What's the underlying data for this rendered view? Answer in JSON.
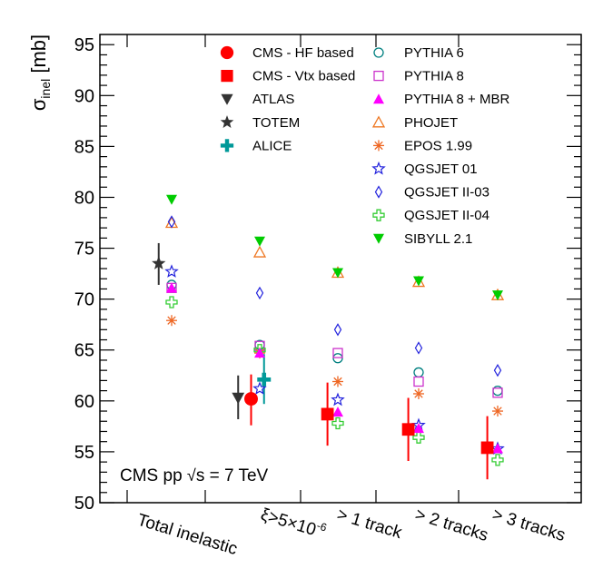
{
  "chart_data": {
    "type": "scatter",
    "ylabel": "σ",
    "ylabel_sub": "inel",
    "ylabel_unit": " [mb]",
    "ylim": [
      50,
      96
    ],
    "yticks": [
      "50",
      "55",
      "60",
      "65",
      "70",
      "75",
      "80",
      "85",
      "90",
      "95"
    ],
    "categories": [
      "Total inelastic",
      "ξ>5×10",
      "> 1 track",
      "> 2 tracks",
      "> 3 tracks"
    ],
    "category_sup": [
      "",
      "-6",
      "",
      "",
      ""
    ],
    "annotation": {
      "pre": "CMS pp ",
      "sqrt": "√",
      "post": "s = 7 TeV"
    },
    "series": [
      {
        "name": "CMS - HF based",
        "marker": "circle-filled",
        "color": "#ff0000",
        "points": [
          {
            "cat": 1,
            "off": -0.1,
            "y": 60.2,
            "lo": 57.6,
            "hi": 62.6
          }
        ]
      },
      {
        "name": "CMS - Vtx based",
        "marker": "square-filled",
        "color": "#ff0000",
        "points": [
          {
            "cat": 2,
            "off": -0.12,
            "y": 58.7,
            "lo": 55.6,
            "hi": 61.8
          },
          {
            "cat": 3,
            "off": -0.12,
            "y": 57.2,
            "lo": 54.1,
            "hi": 60.3
          },
          {
            "cat": 4,
            "off": -0.12,
            "y": 55.4,
            "lo": 52.3,
            "hi": 58.5
          }
        ]
      },
      {
        "name": "ATLAS",
        "marker": "tri-down-filled",
        "color": "#333333",
        "points": [
          {
            "cat": 1,
            "off": -0.25,
            "y": 60.3,
            "lo": 58.2,
            "hi": 62.5
          }
        ]
      },
      {
        "name": "TOTEM",
        "marker": "star-filled",
        "color": "#333333",
        "points": [
          {
            "cat": 0,
            "off": -0.15,
            "y": 73.5,
            "lo": 71.4,
            "hi": 75.5
          }
        ]
      },
      {
        "name": "ALICE",
        "marker": "plus-filled",
        "color": "#009999",
        "points": [
          {
            "cat": 1,
            "off": 0.05,
            "y": 62.1,
            "lo": 59.7,
            "hi": 64.6
          }
        ]
      },
      {
        "name": "PYTHIA 6",
        "marker": "circle-open",
        "color": "#008080",
        "points": [
          {
            "cat": 0,
            "y": 71.4
          },
          {
            "cat": 1,
            "y": 65.5
          },
          {
            "cat": 2,
            "y": 64.2
          },
          {
            "cat": 3,
            "y": 62.8
          },
          {
            "cat": 4,
            "y": 61.0
          }
        ]
      },
      {
        "name": "PYTHIA 8",
        "marker": "square-open",
        "color": "#cc33cc",
        "points": [
          {
            "cat": 0,
            "y": 71.1
          },
          {
            "cat": 1,
            "y": 65.4
          },
          {
            "cat": 2,
            "y": 64.7
          },
          {
            "cat": 3,
            "y": 61.9
          },
          {
            "cat": 4,
            "y": 60.8
          }
        ]
      },
      {
        "name": "PYTHIA 8 + MBR",
        "marker": "tri-up-filled",
        "color": "#ff00ff",
        "points": [
          {
            "cat": 0,
            "y": 71.1
          },
          {
            "cat": 1,
            "y": 64.7
          },
          {
            "cat": 2,
            "y": 58.9
          },
          {
            "cat": 3,
            "y": 57.3
          },
          {
            "cat": 4,
            "y": 55.3
          }
        ]
      },
      {
        "name": "PHOJET",
        "marker": "tri-up-open",
        "color": "#ee7722",
        "points": [
          {
            "cat": 0,
            "y": 77.5
          },
          {
            "cat": 1,
            "y": 74.6
          },
          {
            "cat": 2,
            "y": 72.6
          },
          {
            "cat": 3,
            "y": 71.7
          },
          {
            "cat": 4,
            "y": 70.4
          }
        ]
      },
      {
        "name": "EPOS 1.99",
        "marker": "asterisk",
        "color": "#ee6622",
        "points": [
          {
            "cat": 0,
            "y": 67.9
          },
          {
            "cat": 1,
            "y": 64.7
          },
          {
            "cat": 2,
            "y": 61.9
          },
          {
            "cat": 3,
            "y": 60.7
          },
          {
            "cat": 4,
            "y": 59.0
          }
        ]
      },
      {
        "name": "QGSJET 01",
        "marker": "star-open",
        "color": "#2222dd",
        "points": [
          {
            "cat": 0,
            "y": 72.7
          },
          {
            "cat": 1,
            "y": 61.2
          },
          {
            "cat": 2,
            "y": 60.1
          },
          {
            "cat": 3,
            "y": 57.6
          },
          {
            "cat": 4,
            "y": 55.3
          }
        ]
      },
      {
        "name": "QGSJET II-03",
        "marker": "diamond-open",
        "color": "#2222dd",
        "points": [
          {
            "cat": 0,
            "y": 77.6
          },
          {
            "cat": 1,
            "y": 70.6
          },
          {
            "cat": 2,
            "y": 67.0
          },
          {
            "cat": 3,
            "y": 65.2
          },
          {
            "cat": 4,
            "y": 63.0
          }
        ]
      },
      {
        "name": "QGSJET II-04",
        "marker": "cross-open",
        "color": "#33cc33",
        "points": [
          {
            "cat": 0,
            "y": 69.7
          },
          {
            "cat": 1,
            "y": 65.0
          },
          {
            "cat": 2,
            "y": 57.8
          },
          {
            "cat": 3,
            "y": 56.4
          },
          {
            "cat": 4,
            "y": 54.2
          }
        ]
      },
      {
        "name": "SIBYLL 2.1",
        "marker": "tri-down-filled",
        "color": "#00cc00",
        "points": [
          {
            "cat": 0,
            "y": 79.8
          },
          {
            "cat": 1,
            "y": 75.7
          },
          {
            "cat": 2,
            "y": 72.6
          },
          {
            "cat": 3,
            "y": 71.8
          },
          {
            "cat": 4,
            "y": 70.4
          }
        ]
      }
    ]
  }
}
